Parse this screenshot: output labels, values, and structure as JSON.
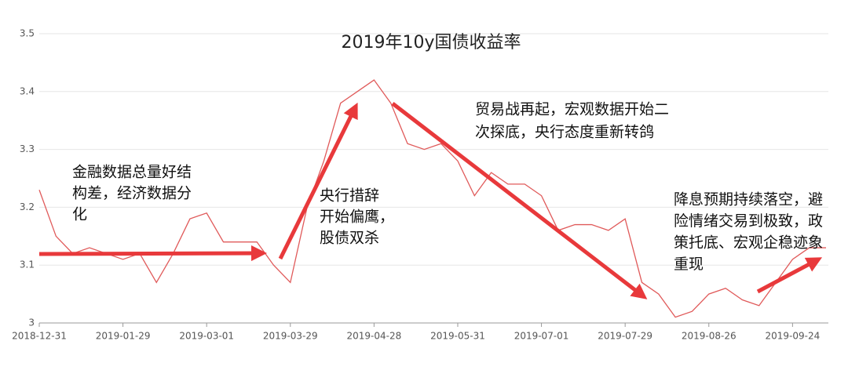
{
  "chart_data": {
    "type": "line",
    "title": "2019年10y国债收益率",
    "categories": [
      "2018-12-31",
      null,
      null,
      null,
      null,
      "2019-01-29",
      null,
      null,
      null,
      null,
      "2019-03-01",
      null,
      null,
      null,
      null,
      "2019-03-29",
      null,
      null,
      null,
      null,
      "2019-04-28",
      null,
      null,
      null,
      null,
      "2019-05-31",
      null,
      null,
      null,
      null,
      "2019-07-01",
      null,
      null,
      null,
      null,
      "2019-07-29",
      null,
      null,
      null,
      null,
      "2019-08-26",
      null,
      null,
      null,
      null,
      "2019-09-24",
      null,
      null
    ],
    "series": [
      {
        "color": "#e05a5a",
        "values": [
          3.23,
          3.15,
          3.12,
          3.13,
          3.12,
          3.11,
          3.12,
          3.07,
          3.12,
          3.18,
          3.19,
          3.14,
          3.14,
          3.14,
          3.1,
          3.07,
          3.2,
          3.28,
          3.38,
          3.4,
          3.42,
          3.38,
          3.31,
          3.3,
          3.31,
          3.28,
          3.22,
          3.26,
          3.24,
          3.24,
          3.22,
          3.16,
          3.17,
          3.17,
          3.16,
          3.18,
          3.07,
          3.05,
          3.01,
          3.02,
          3.05,
          3.06,
          3.04,
          3.03,
          3.07,
          3.11,
          3.13,
          3.13
        ]
      }
    ],
    "ylim": [
      3,
      3.5
    ],
    "yticks": [
      3,
      3.1,
      3.2,
      3.3,
      3.4,
      3.5
    ],
    "grid": true,
    "annotations": [
      [
        "金融数据总量好结",
        "构差，经济数据分",
        "化"
      ],
      [
        "央行措辞",
        "开始偏鹰，",
        "股债双杀"
      ],
      [
        "贸易战再起，宏观数据开始二",
        "次探底，央行态度重新转鸽"
      ],
      [
        "降息预期持续落空，避",
        "险情绪交易到极致，政",
        "策托底、宏观企稳迹象",
        "重现"
      ]
    ]
  }
}
